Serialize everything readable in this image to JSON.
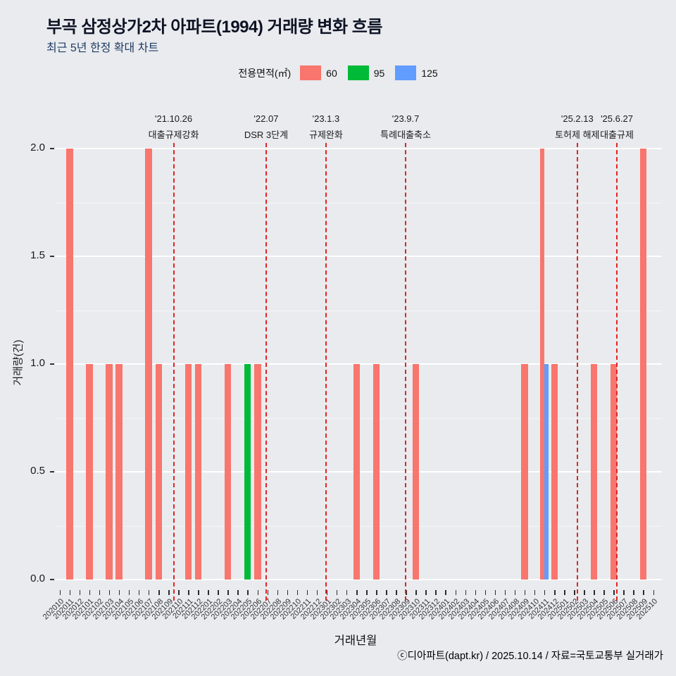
{
  "header": {
    "title": "부곡 삼정상가2차 아파트(1994) 거래량 변화 흐름",
    "subtitle": "최근 5년 한정 확대 차트"
  },
  "legend": {
    "title": "전용면적(㎡)",
    "items": [
      {
        "label": "60",
        "color": "#f8766d"
      },
      {
        "label": "95",
        "color": "#00ba38"
      },
      {
        "label": "125",
        "color": "#619cff"
      }
    ]
  },
  "axes": {
    "x_title": "거래년월",
    "y_title": "거래량(건)",
    "y_tick_labels": [
      "0.0",
      "0.5",
      "1.0",
      "1.5",
      "2.0"
    ]
  },
  "footer": {
    "credit": "ⓒ디아파트(dapt.kr) / 2025.10.14 / 자료=국토교통부 실거래가"
  },
  "chart_data": {
    "type": "bar",
    "title": "부곡 삼정상가2차 아파트(1994) 거래량 변화 흐름",
    "subtitle": "최근 5년 한정 확대 차트",
    "xlabel": "거래년월",
    "ylabel": "거래량(건)",
    "ylim": [
      0,
      2
    ],
    "yticks": [
      0,
      0.5,
      1,
      1.5,
      2
    ],
    "grid": true,
    "legend_position": "top",
    "categories": [
      "202010",
      "202011",
      "202012",
      "202101",
      "202102",
      "202103",
      "202104",
      "202105",
      "202106",
      "202107",
      "202108",
      "202109",
      "202110",
      "202111",
      "202112",
      "202201",
      "202202",
      "202203",
      "202204",
      "202205",
      "202206",
      "202207",
      "202208",
      "202209",
      "202210",
      "202211",
      "202212",
      "202301",
      "202302",
      "202303",
      "202304",
      "202305",
      "202306",
      "202307",
      "202308",
      "202309",
      "202310",
      "202311",
      "202312",
      "202401",
      "202402",
      "202403",
      "202404",
      "202405",
      "202406",
      "202407",
      "202408",
      "202409",
      "202410",
      "202411",
      "202412",
      "202501",
      "202502",
      "202503",
      "202504",
      "202505",
      "202506",
      "202507",
      "202508",
      "202509",
      "202510"
    ],
    "series": [
      {
        "name": "60",
        "color": "#f8766d",
        "points": {
          "202011": 2,
          "202101": 1,
          "202103": 1,
          "202104": 1,
          "202107": 2,
          "202108": 1,
          "202111": 1,
          "202112": 1,
          "202203": 1,
          "202206": 1,
          "202304": 1,
          "202306": 1,
          "202310": 1,
          "202409": 1,
          "202411": 2,
          "202412": 1,
          "202504": 1,
          "202506": 1,
          "202509": 2
        }
      },
      {
        "name": "95",
        "color": "#00ba38",
        "points": {
          "202205": 1
        }
      },
      {
        "name": "125",
        "color": "#619cff",
        "points": {
          "202411": 1
        }
      }
    ],
    "events": [
      {
        "date": "'21.10.26",
        "label": "대출규제강화",
        "x_index": 11.5
      },
      {
        "date": "'22.07",
        "label": "DSR 3단계",
        "x_index": 20.85
      },
      {
        "date": "'23.1.3",
        "label": "규제완화",
        "x_index": 26.9
      },
      {
        "date": "'23.9.7",
        "label": "특례대출축소",
        "x_index": 34.95
      },
      {
        "date": "'25.2.13",
        "label": "토허제 해제",
        "x_index": 52.3
      },
      {
        "date": "'25.6.27",
        "label": "대출규제",
        "x_index": 56.3
      }
    ]
  }
}
